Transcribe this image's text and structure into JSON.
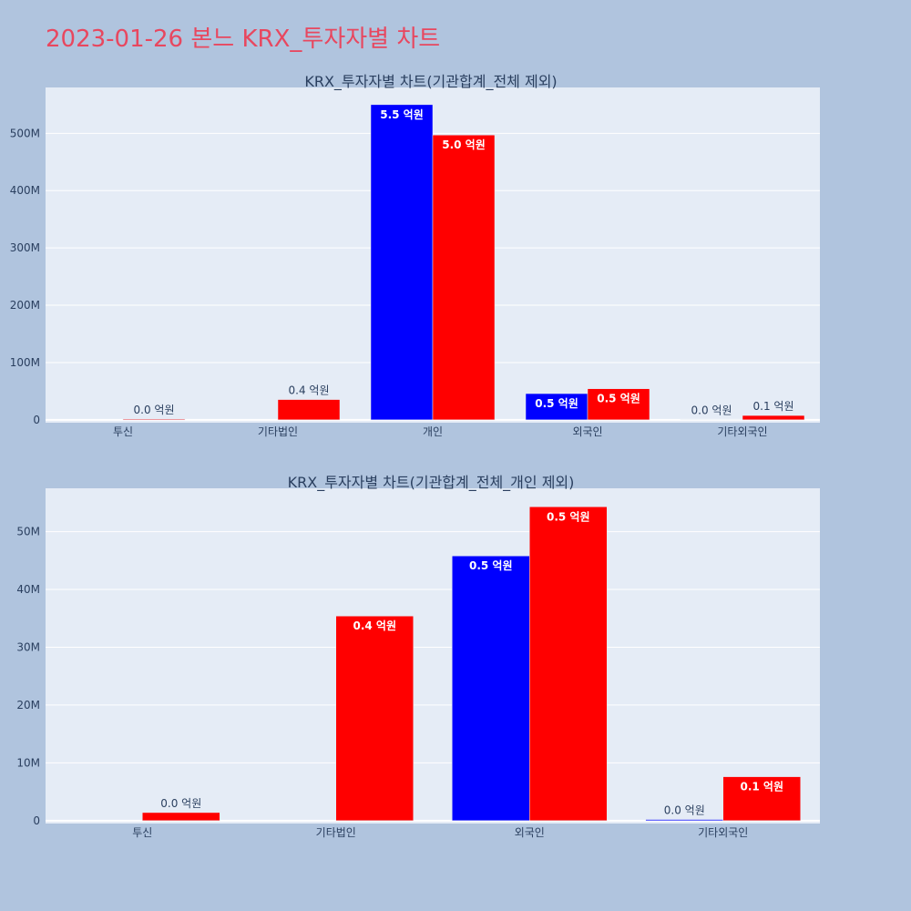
{
  "page": {
    "title": "2023-01-26 본느 KRX_투자자별 차트",
    "title_color": "#e8475f",
    "background": "#b0c4de",
    "plot_background": "#e5ecf6"
  },
  "chart_data": [
    {
      "type": "bar",
      "title": "KRX_투자자별 차트(기관합계_전체 제외)",
      "categories": [
        "투신",
        "기타법인",
        "개인",
        "외국인",
        "기타외국인"
      ],
      "series": [
        {
          "color": "#0000ff",
          "values": [
            0,
            0,
            550000000,
            45800000,
            200000
          ],
          "labels": [
            "",
            "",
            "5.5 억원",
            "0.5 억원",
            "0.0 억원"
          ]
        },
        {
          "color": "#ff0000",
          "values": [
            1400000,
            35400000,
            497000000,
            54300000,
            7600000
          ],
          "labels": [
            "0.0 억원",
            "0.4 억원",
            "5.0 억원",
            "0.5 억원",
            "0.1 억원"
          ]
        }
      ],
      "ylim": [
        -5000000,
        580000000
      ],
      "yticks": [
        0,
        100000000,
        200000000,
        300000000,
        400000000,
        500000000
      ],
      "ytick_labels": [
        "0",
        "100M",
        "200M",
        "300M",
        "400M",
        "500M"
      ],
      "grid": true,
      "legend": "none"
    },
    {
      "type": "bar",
      "title": "KRX_투자자별 차트(기관합계_전체_개인 제외)",
      "categories": [
        "투신",
        "기타법인",
        "외국인",
        "기타외국인"
      ],
      "series": [
        {
          "color": "#0000ff",
          "values": [
            0,
            0,
            45800000,
            200000
          ],
          "labels": [
            "",
            "",
            "0.5 억원",
            "0.0 억원"
          ]
        },
        {
          "color": "#ff0000",
          "values": [
            1400000,
            35400000,
            54300000,
            7600000
          ],
          "labels": [
            "0.0 억원",
            "0.4 억원",
            "0.5 억원",
            "0.1 억원"
          ]
        }
      ],
      "ylim": [
        -500000,
        57500000
      ],
      "yticks": [
        0,
        10000000,
        20000000,
        30000000,
        40000000,
        50000000
      ],
      "ytick_labels": [
        "0",
        "10M",
        "20M",
        "30M",
        "40M",
        "50M"
      ],
      "grid": true,
      "legend": "none"
    }
  ]
}
